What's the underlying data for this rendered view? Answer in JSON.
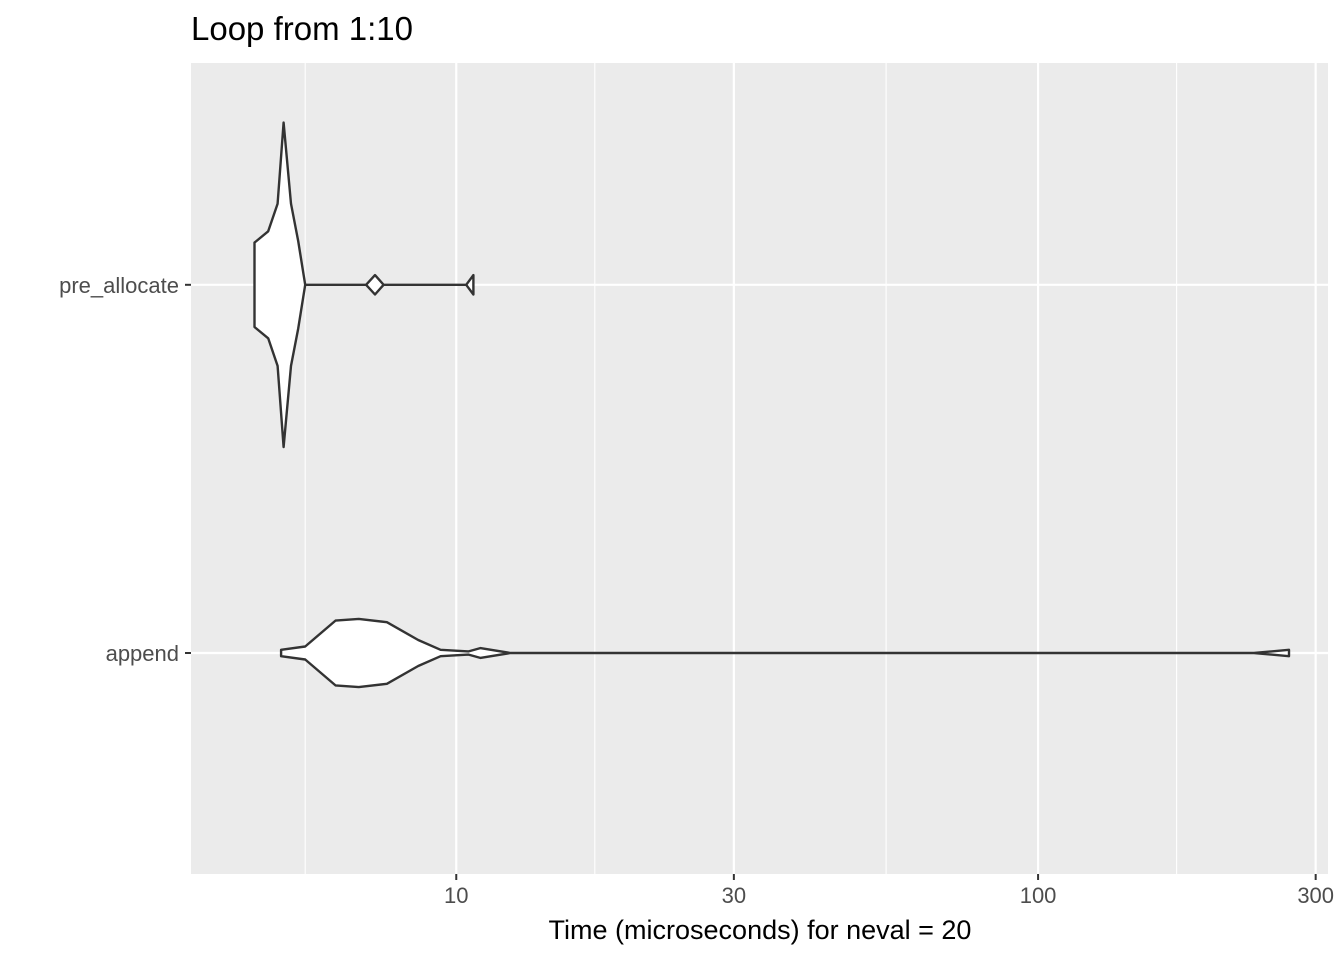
{
  "chart_data": {
    "type": "violin",
    "title": "Loop from 1:10",
    "xlabel": "Time (microseconds) for neval = 20",
    "ylabel": "",
    "x_scale": "log10",
    "xlim": [
      3.5,
      315
    ],
    "x_ticks": [
      {
        "value": 10,
        "label": "10"
      },
      {
        "value": 30,
        "label": "30"
      },
      {
        "value": 100,
        "label": "100"
      },
      {
        "value": 300,
        "label": "300"
      }
    ],
    "x_minor_gridlines": [
      5.5,
      17.3,
      54.8,
      173
    ],
    "categories": [
      "pre_allocate",
      "append"
    ],
    "grid": true,
    "legend": "none",
    "colors": {
      "panel": "#ebebeb",
      "grid": "#ffffff",
      "violin_fill": "#ffffff",
      "violin_stroke": "#333333",
      "axis_text": "#4d4d4d",
      "title_text": "#000000"
    },
    "series": [
      {
        "category": "pre_allocate",
        "range": [
          4.5,
          10.7
        ],
        "density_profile": [
          [
            4.5,
            0.26
          ],
          [
            4.75,
            0.33
          ],
          [
            4.93,
            0.5
          ],
          [
            5.05,
            1.0
          ],
          [
            5.2,
            0.5
          ],
          [
            5.35,
            0.27
          ],
          [
            5.5,
            0.0
          ],
          [
            7.0,
            0.0
          ],
          [
            7.25,
            0.06
          ],
          [
            7.5,
            0.0
          ],
          [
            10.4,
            0.0
          ],
          [
            10.7,
            0.06
          ]
        ]
      },
      {
        "category": "append",
        "range": [
          5.0,
          270
        ],
        "density_profile": [
          [
            5.0,
            0.02
          ],
          [
            5.5,
            0.04
          ],
          [
            6.2,
            0.2
          ],
          [
            6.8,
            0.21
          ],
          [
            7.6,
            0.19
          ],
          [
            8.6,
            0.08
          ],
          [
            9.4,
            0.02
          ],
          [
            10.5,
            0.01
          ],
          [
            11.0,
            0.03
          ],
          [
            12.4,
            0.0
          ],
          [
            100,
            0.0
          ],
          [
            235,
            0.0
          ],
          [
            270,
            0.02
          ]
        ]
      }
    ]
  }
}
